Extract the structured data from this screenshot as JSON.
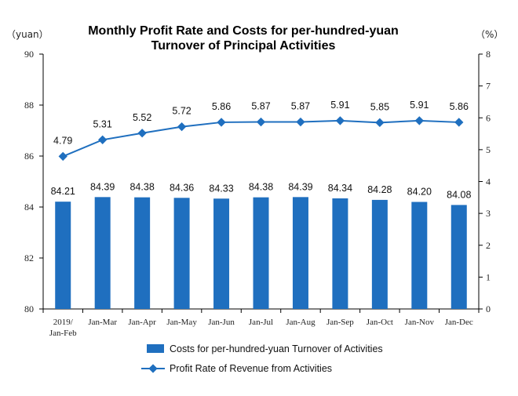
{
  "chart_data": {
    "type": "bar+line",
    "title_lines": [
      "Monthly Profit Rate and Costs for per-hundred-yuan",
      "Turnover of Principal Activities"
    ],
    "left_unit": "（yuan）",
    "right_unit": "（%）",
    "categories": [
      "2019/\nJan-Feb",
      "Jan-Mar",
      "Jan-Apr",
      "Jan-May",
      "Jan-Jun",
      "Jan-Jul",
      "Jan-Aug",
      "Jan-Sep",
      "Jan-Oct",
      "Jan-Nov",
      "Jan-Dec"
    ],
    "left_axis": {
      "min": 80,
      "max": 90,
      "ticks": [
        "80",
        "82",
        "84",
        "86",
        "88",
        "90"
      ]
    },
    "right_axis": {
      "min": 0,
      "max": 8,
      "ticks": [
        "0",
        "1",
        "2",
        "3",
        "4",
        "5",
        "6",
        "7",
        "8"
      ]
    },
    "series": [
      {
        "name": "Costs for per-hundred-yuan Turnover of  Activities",
        "kind": "bar",
        "axis": "left",
        "color": "#1f6fbf",
        "values": [
          84.21,
          84.39,
          84.38,
          84.36,
          84.33,
          84.38,
          84.39,
          84.34,
          84.28,
          84.2,
          84.08
        ],
        "labels": [
          "84.21",
          "84.39",
          "84.38",
          "84.36",
          "84.33",
          "84.38",
          "84.39",
          "84.34",
          "84.28",
          "84.20",
          "84.08"
        ]
      },
      {
        "name": "Profit Rate of Revenue from Activities",
        "kind": "line",
        "axis": "right",
        "color": "#1f6fbf",
        "values": [
          4.79,
          5.31,
          5.52,
          5.72,
          5.86,
          5.87,
          5.87,
          5.91,
          5.85,
          5.91,
          5.86
        ],
        "labels": [
          "4.79",
          "5.31",
          "5.52",
          "5.72",
          "5.86",
          "5.87",
          "5.87",
          "5.91",
          "5.85",
          "5.91",
          "5.86"
        ]
      }
    ],
    "legend_position": "bottom",
    "grid": false
  }
}
